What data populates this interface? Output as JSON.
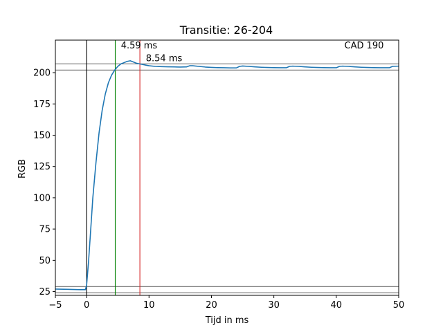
{
  "chart_data": {
    "type": "line",
    "title": "Transitie: 26-204",
    "xlabel": "Tijd in ms",
    "ylabel": "RGB",
    "xlim": [
      -5,
      50
    ],
    "ylim": [
      22,
      226
    ],
    "xticks": [
      -5,
      0,
      10,
      20,
      30,
      40,
      50
    ],
    "yticks": [
      25,
      50,
      75,
      100,
      125,
      150,
      175,
      200
    ],
    "grid": false,
    "series": [
      {
        "color": "#1f77b4",
        "x": [
          -5,
          -3,
          -1,
          -0.2,
          0,
          0.3,
          0.6,
          1.0,
          1.5,
          2.0,
          2.5,
          3.0,
          3.5,
          4.0,
          4.5,
          5.0,
          5.5,
          6.0,
          6.5,
          7.0,
          7.5,
          8.0,
          8.5,
          9.0,
          9.5,
          10,
          11,
          12,
          13,
          14,
          15,
          16,
          16.5,
          17,
          18,
          19,
          20,
          21,
          22,
          23,
          24,
          24.5,
          25,
          26,
          27,
          28,
          29,
          30,
          31,
          32,
          32.5,
          33,
          34,
          35,
          36,
          37,
          38,
          39,
          40,
          40.5,
          41,
          42,
          43,
          44,
          45,
          46,
          47,
          48,
          48.5,
          49,
          50
        ],
        "y": [
          27,
          26.8,
          26.5,
          26.5,
          30,
          48,
          70,
          100,
          128,
          152,
          170,
          183,
          192,
          198,
          202,
          205,
          207,
          208,
          209,
          209.5,
          208.5,
          207.5,
          207,
          206.5,
          206,
          205.5,
          205,
          204.8,
          204.7,
          204.6,
          204.5,
          204.6,
          205.5,
          205.5,
          205,
          204.5,
          204.2,
          204,
          203.9,
          203.8,
          203.8,
          205,
          205.3,
          205,
          204.6,
          204.3,
          204.1,
          204,
          203.9,
          203.9,
          205,
          205.2,
          205,
          204.6,
          204.3,
          204.1,
          204,
          203.9,
          203.9,
          205,
          205.2,
          205,
          204.6,
          204.3,
          204.1,
          204,
          203.9,
          203.9,
          203.9,
          205,
          205.2
        ]
      }
    ],
    "horizontal_lines": [
      {
        "y": 207,
        "color": "#808080"
      },
      {
        "y": 202,
        "color": "#808080"
      },
      {
        "y": 29,
        "color": "#808080"
      },
      {
        "y": 24,
        "color": "#808080"
      }
    ],
    "vertical_lines": [
      {
        "x": 0,
        "color": "#000000"
      },
      {
        "x": 4.59,
        "color": "#008000"
      },
      {
        "x": 8.54,
        "color": "#d62728"
      }
    ],
    "annotations": [
      {
        "text": "4.59 ms",
        "x": 5.5,
        "y": 222
      },
      {
        "text": "8.54 ms",
        "x": 9.5,
        "y": 212
      },
      {
        "text": "CAD 190",
        "x": 41.3,
        "y": 222
      }
    ]
  }
}
